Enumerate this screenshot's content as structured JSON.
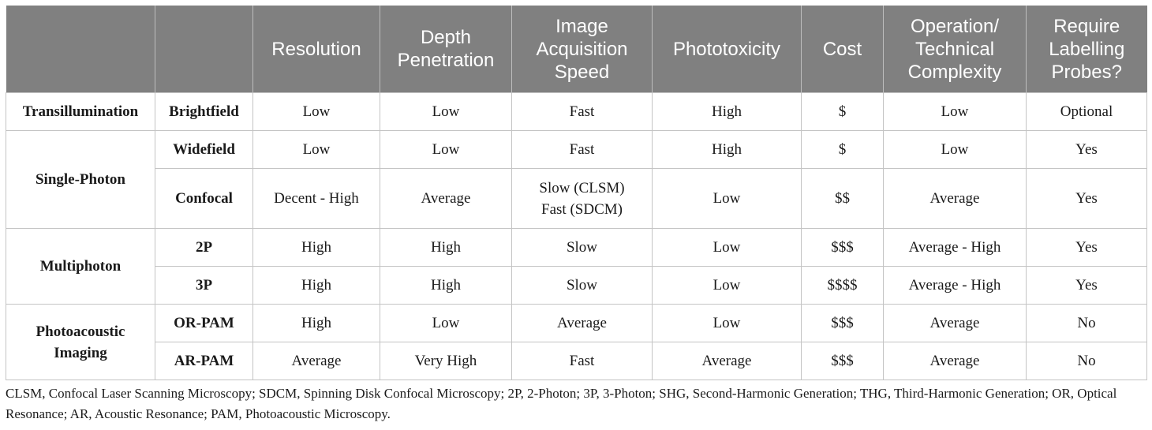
{
  "table": {
    "headers": [
      "",
      "",
      "Resolution",
      "Depth\nPenetration",
      "Image\nAcquisition\nSpeed",
      "Phototoxicity",
      "Cost",
      "Operation/\nTechnical\nComplexity",
      "Require\nLabelling\nProbes?"
    ],
    "groups": [
      {
        "name": "Transillumination",
        "rows": [
          {
            "technique": "Brightfield",
            "resolution": "Low",
            "depth": "Low",
            "speed": "Fast",
            "phototoxicity": "High",
            "cost": "$",
            "complexity": "Low",
            "probes": "Optional"
          }
        ]
      },
      {
        "name": "Single-Photon",
        "rows": [
          {
            "technique": "Widefield",
            "resolution": "Low",
            "depth": "Low",
            "speed": "Fast",
            "phototoxicity": "High",
            "cost": "$",
            "complexity": "Low",
            "probes": "Yes"
          },
          {
            "technique": "Confocal",
            "resolution": "Decent - High",
            "depth": "Average",
            "speed": "Slow (CLSM)\nFast (SDCM)",
            "phototoxicity": "Low",
            "cost": "$$",
            "complexity": "Average",
            "probes": "Yes"
          }
        ]
      },
      {
        "name": "Multiphoton",
        "rows": [
          {
            "technique": "2P",
            "resolution": "High",
            "depth": "High",
            "speed": "Slow",
            "phototoxicity": "Low",
            "cost": "$$$",
            "complexity": "Average - High",
            "probes": "Yes"
          },
          {
            "technique": "3P",
            "resolution": "High",
            "depth": "High",
            "speed": "Slow",
            "phototoxicity": "Low",
            "cost": "$$$$",
            "complexity": "Average - High",
            "probes": "Yes"
          }
        ]
      },
      {
        "name": "Photoacoustic\nImaging",
        "rows": [
          {
            "technique": "OR-PAM",
            "resolution": "High",
            "depth": "Low",
            "speed": "Average",
            "phototoxicity": "Low",
            "cost": "$$$",
            "complexity": "Average",
            "probes": "No"
          },
          {
            "technique": "AR-PAM",
            "resolution": "Average",
            "depth": "Very High",
            "speed": "Fast",
            "phototoxicity": "Average",
            "cost": "$$$",
            "complexity": "Average",
            "probes": "No"
          }
        ]
      }
    ]
  },
  "footnote": "CLSM, Confocal Laser Scanning Microscopy; SDCM, Spinning Disk Confocal Microscopy; 2P, 2-Photon; 3P, 3-Photon; SHG, Second-Harmonic Generation; THG, Third-Harmonic Generation; OR, Optical Resonance; AR, Acoustic Resonance; PAM, Photoacoustic Microscopy."
}
